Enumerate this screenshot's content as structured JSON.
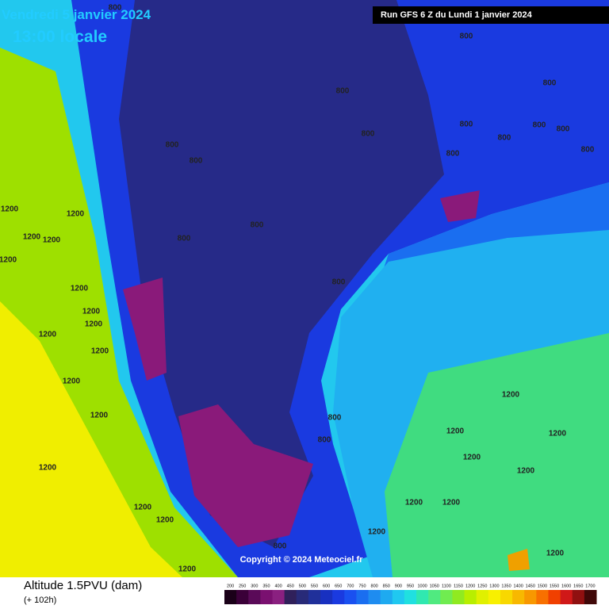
{
  "header": {
    "date": "Vendredi 5 janvier 2024",
    "time": "13:00 locale",
    "run": "Run GFS 6 Z du Lundi 1 janvier 2024"
  },
  "map": {
    "copyright": "Copyright © 2024 Meteociel.fr",
    "contour_labels": [
      "800",
      "800",
      "800",
      "800",
      "800",
      "800",
      "800",
      "800",
      "800",
      "800",
      "800",
      "800",
      "800",
      "800",
      "800",
      "800",
      "800",
      "800",
      "800",
      "1200",
      "1200",
      "1200",
      "1200",
      "1200",
      "1200",
      "1200",
      "1200",
      "1200",
      "1200",
      "1200",
      "1200",
      "1200",
      "1200",
      "1200",
      "1200",
      "1200",
      "1200",
      "1200",
      "1200",
      "1200",
      "1200",
      "1200",
      "1200",
      "1200"
    ]
  },
  "legend": {
    "title": "Altitude 1.5PVU (dam)",
    "lead": "(+ 102h)",
    "labels": [
      "200",
      "250",
      "300",
      "350",
      "400",
      "450",
      "500",
      "550",
      "600",
      "650",
      "700",
      "750",
      "800",
      "850",
      "900",
      "950",
      "1000",
      "1050",
      "1100",
      "1150",
      "1200",
      "1250",
      "1300",
      "1350",
      "1400",
      "1450",
      "1500",
      "1550",
      "1600",
      "1650",
      "1700"
    ],
    "colors": [
      "#1a0018",
      "#3a0038",
      "#5a0a58",
      "#7a1070",
      "#8a2080",
      "#30205a",
      "#282a78",
      "#20309a",
      "#1830c0",
      "#1a3ae0",
      "#1a50f0",
      "#1a6ef0",
      "#1e8cf0",
      "#1eaaf0",
      "#20c8f0",
      "#20e0e0",
      "#30e8b0",
      "#50ea80",
      "#70ec50",
      "#90ea20",
      "#b8ee00",
      "#e0f000",
      "#f8f000",
      "#f8d800",
      "#f8b800",
      "#f89800",
      "#f87000",
      "#f04000",
      "#d01818",
      "#901010",
      "#400808"
    ]
  }
}
